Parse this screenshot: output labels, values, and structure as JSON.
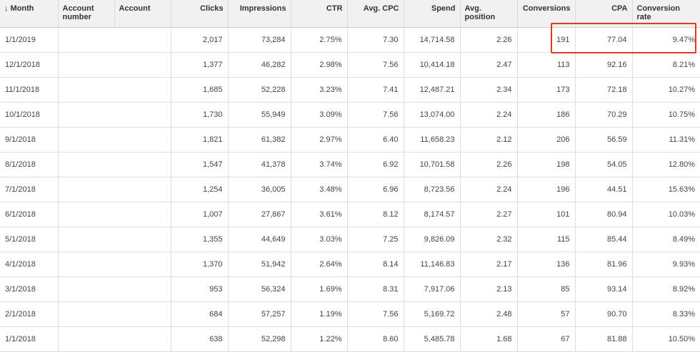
{
  "table": {
    "columns": [
      "Month",
      "Account number",
      "Account",
      "Clicks",
      "Impressions",
      "CTR",
      "Avg. CPC",
      "Spend",
      "Avg. position",
      "Conversions",
      "CPA",
      "Conversion rate"
    ],
    "sort_icon": "arrow-down-icon",
    "rows": [
      {
        "month": "1/1/2019",
        "clicks": "2,017",
        "impressions": "73,284",
        "ctr": "2.75%",
        "cpc": "7.30",
        "spend": "14,714.58",
        "position": "2.26",
        "conversions": "191",
        "cpa": "77.04",
        "rate": "9.47%"
      },
      {
        "month": "12/1/2018",
        "clicks": "1,377",
        "impressions": "46,282",
        "ctr": "2.98%",
        "cpc": "7.56",
        "spend": "10,414.18",
        "position": "2.47",
        "conversions": "113",
        "cpa": "92.16",
        "rate": "8.21%"
      },
      {
        "month": "11/1/2018",
        "clicks": "1,685",
        "impressions": "52,228",
        "ctr": "3.23%",
        "cpc": "7.41",
        "spend": "12,487.21",
        "position": "2.34",
        "conversions": "173",
        "cpa": "72.18",
        "rate": "10.27%"
      },
      {
        "month": "10/1/2018",
        "clicks": "1,730",
        "impressions": "55,949",
        "ctr": "3.09%",
        "cpc": "7.56",
        "spend": "13,074.00",
        "position": "2.24",
        "conversions": "186",
        "cpa": "70.29",
        "rate": "10.75%"
      },
      {
        "month": "9/1/2018",
        "clicks": "1,821",
        "impressions": "61,382",
        "ctr": "2.97%",
        "cpc": "6.40",
        "spend": "11,658.23",
        "position": "2.12",
        "conversions": "206",
        "cpa": "56.59",
        "rate": "11.31%"
      },
      {
        "month": "8/1/2018",
        "clicks": "1,547",
        "impressions": "41,378",
        "ctr": "3.74%",
        "cpc": "6.92",
        "spend": "10,701.58",
        "position": "2.26",
        "conversions": "198",
        "cpa": "54.05",
        "rate": "12.80%"
      },
      {
        "month": "7/1/2018",
        "clicks": "1,254",
        "impressions": "36,005",
        "ctr": "3.48%",
        "cpc": "6.96",
        "spend": "8,723.56",
        "position": "2.24",
        "conversions": "196",
        "cpa": "44.51",
        "rate": "15.63%"
      },
      {
        "month": "6/1/2018",
        "clicks": "1,007",
        "impressions": "27,867",
        "ctr": "3.61%",
        "cpc": "8.12",
        "spend": "8,174.57",
        "position": "2.27",
        "conversions": "101",
        "cpa": "80.94",
        "rate": "10.03%"
      },
      {
        "month": "5/1/2018",
        "clicks": "1,355",
        "impressions": "44,649",
        "ctr": "3.03%",
        "cpc": "7.25",
        "spend": "9,826.09",
        "position": "2.32",
        "conversions": "115",
        "cpa": "85.44",
        "rate": "8.49%"
      },
      {
        "month": "4/1/2018",
        "clicks": "1,370",
        "impressions": "51,942",
        "ctr": "2.64%",
        "cpc": "8.14",
        "spend": "11,146.83",
        "position": "2.17",
        "conversions": "136",
        "cpa": "81.96",
        "rate": "9.93%"
      },
      {
        "month": "3/1/2018",
        "clicks": "953",
        "impressions": "56,324",
        "ctr": "1.69%",
        "cpc": "8.31",
        "spend": "7,917.06",
        "position": "2.13",
        "conversions": "85",
        "cpa": "93.14",
        "rate": "8.92%"
      },
      {
        "month": "2/1/2018",
        "clicks": "684",
        "impressions": "57,257",
        "ctr": "1.19%",
        "cpc": "7.56",
        "spend": "5,169.72",
        "position": "2.48",
        "conversions": "57",
        "cpa": "90.70",
        "rate": "8.33%"
      },
      {
        "month": "1/1/2018",
        "clicks": "638",
        "impressions": "52,298",
        "ctr": "1.22%",
        "cpc": "8.60",
        "spend": "5,485.78",
        "position": "1.68",
        "conversions": "67",
        "cpa": "81.88",
        "rate": "10.50%"
      }
    ]
  },
  "colors": {
    "header_bg": "#f1f1f1",
    "highlight_border": "#e43a22",
    "text": "#444444"
  }
}
